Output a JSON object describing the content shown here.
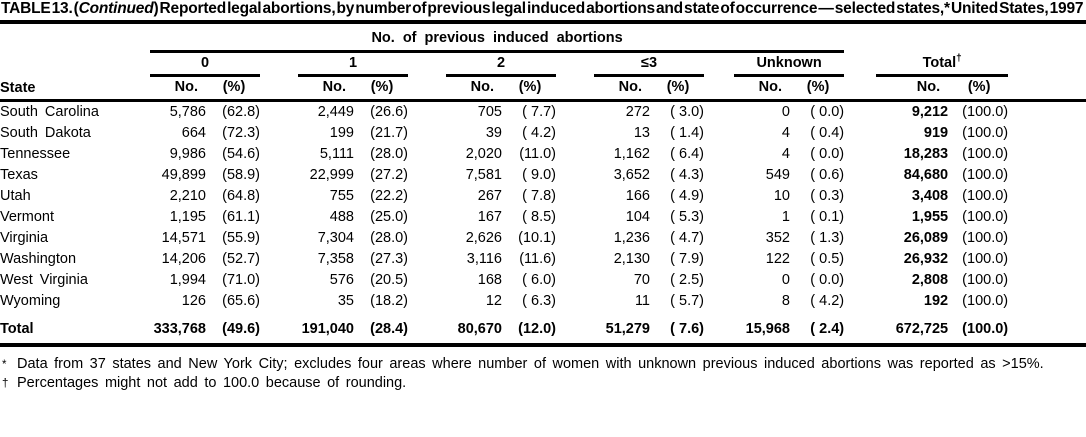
{
  "title": {
    "prefix": "TABLE 13. (",
    "continued": "Continued",
    "suffix": ") Reported legal abortions, by number of previous legal induced abortions and state of occurrence — selected states,* United States, 1997"
  },
  "header": {
    "spanner": "No. of previous induced abortions",
    "state_col": "State",
    "groups": [
      "0",
      "1",
      "2",
      "≤3",
      "Unknown",
      "Total"
    ],
    "total_dagger": "†",
    "no_label": "No.",
    "pct_label": "(%)"
  },
  "table": {
    "rows": [
      {
        "state": "South Carolina",
        "c0n": "5,786",
        "c0p": "(62.8)",
        "c1n": "2,449",
        "c1p": "(26.6)",
        "c2n": "705",
        "c2p": "( 7.7)",
        "c3n": "272",
        "c3p": "( 3.0)",
        "cun": "0",
        "cup": "( 0.0)",
        "ctn": "9,212",
        "ctp": "(100.0)"
      },
      {
        "state": "South Dakota",
        "c0n": "664",
        "c0p": "(72.3)",
        "c1n": "199",
        "c1p": "(21.7)",
        "c2n": "39",
        "c2p": "( 4.2)",
        "c3n": "13",
        "c3p": "( 1.4)",
        "cun": "4",
        "cup": "( 0.4)",
        "ctn": "919",
        "ctp": "(100.0)"
      },
      {
        "state": "Tennessee",
        "c0n": "9,986",
        "c0p": "(54.6)",
        "c1n": "5,111",
        "c1p": "(28.0)",
        "c2n": "2,020",
        "c2p": "(11.0)",
        "c3n": "1,162",
        "c3p": "( 6.4)",
        "cun": "4",
        "cup": "( 0.0)",
        "ctn": "18,283",
        "ctp": "(100.0)"
      },
      {
        "state": "Texas",
        "c0n": "49,899",
        "c0p": "(58.9)",
        "c1n": "22,999",
        "c1p": "(27.2)",
        "c2n": "7,581",
        "c2p": "( 9.0)",
        "c3n": "3,652",
        "c3p": "( 4.3)",
        "cun": "549",
        "cup": "( 0.6)",
        "ctn": "84,680",
        "ctp": "(100.0)"
      },
      {
        "state": "Utah",
        "c0n": "2,210",
        "c0p": "(64.8)",
        "c1n": "755",
        "c1p": "(22.2)",
        "c2n": "267",
        "c2p": "( 7.8)",
        "c3n": "166",
        "c3p": "( 4.9)",
        "cun": "10",
        "cup": "( 0.3)",
        "ctn": "3,408",
        "ctp": "(100.0)"
      },
      {
        "state": "Vermont",
        "c0n": "1,195",
        "c0p": "(61.1)",
        "c1n": "488",
        "c1p": "(25.0)",
        "c2n": "167",
        "c2p": "( 8.5)",
        "c3n": "104",
        "c3p": "( 5.3)",
        "cun": "1",
        "cup": "( 0.1)",
        "ctn": "1,955",
        "ctp": "(100.0)"
      },
      {
        "state": "Virginia",
        "c0n": "14,571",
        "c0p": "(55.9)",
        "c1n": "7,304",
        "c1p": "(28.0)",
        "c2n": "2,626",
        "c2p": "(10.1)",
        "c3n": "1,236",
        "c3p": "( 4.7)",
        "cun": "352",
        "cup": "( 1.3)",
        "ctn": "26,089",
        "ctp": "(100.0)"
      },
      {
        "state": "Washington",
        "c0n": "14,206",
        "c0p": "(52.7)",
        "c1n": "7,358",
        "c1p": "(27.3)",
        "c2n": "3,116",
        "c2p": "(11.6)",
        "c3n": "2,130",
        "c3p": "( 7.9)",
        "cun": "122",
        "cup": "( 0.5)",
        "ctn": "26,932",
        "ctp": "(100.0)"
      },
      {
        "state": "West Virginia",
        "c0n": "1,994",
        "c0p": "(71.0)",
        "c1n": "576",
        "c1p": "(20.5)",
        "c2n": "168",
        "c2p": "( 6.0)",
        "c3n": "70",
        "c3p": "( 2.5)",
        "cun": "0",
        "cup": "( 0.0)",
        "ctn": "2,808",
        "ctp": "(100.0)"
      },
      {
        "state": "Wyoming",
        "c0n": "126",
        "c0p": "(65.6)",
        "c1n": "35",
        "c1p": "(18.2)",
        "c2n": "12",
        "c2p": "( 6.3)",
        "c3n": "11",
        "c3p": "( 5.7)",
        "cun": "8",
        "cup": "( 4.2)",
        "ctn": "192",
        "ctp": "(100.0)"
      }
    ],
    "total_row": {
      "state": "Total",
      "c0n": "333,768",
      "c0p": "(49.6)",
      "c1n": "191,040",
      "c1p": "(28.4)",
      "c2n": "80,670",
      "c2p": "(12.0)",
      "c3n": "51,279",
      "c3p": "( 7.6)",
      "cun": "15,968",
      "cup": "( 2.4)",
      "ctn": "672,725",
      "ctp": "(100.0)"
    }
  },
  "footnotes": [
    {
      "marker": "*",
      "text": "Data from 37 states and New York City; excludes four areas where number of women with unknown previous induced abortions was reported as >15%."
    },
    {
      "marker": "†",
      "text": "Percentages might not add to 100.0 because of rounding."
    }
  ]
}
